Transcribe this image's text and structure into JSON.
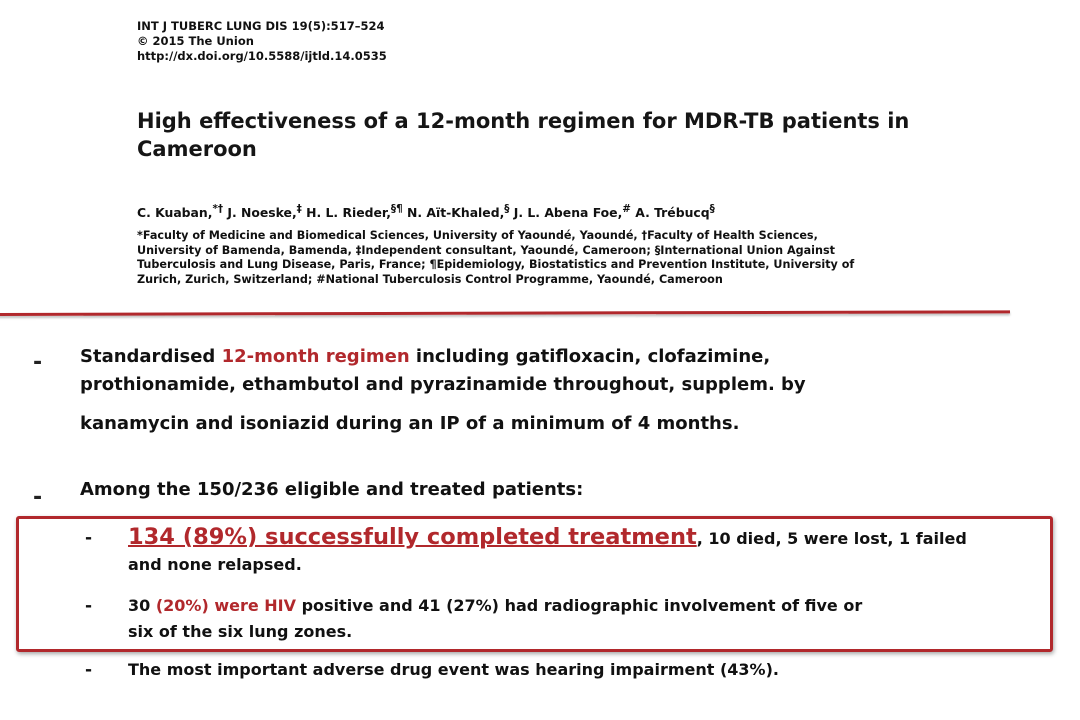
{
  "header": {
    "journal_line": "INT J TUBERC LUNG DIS 19(5):517–524",
    "copyright_line": "© 2015 The Union",
    "doi_line": "http://dx.doi.org/10.5588/ijtld.14.0535"
  },
  "paper": {
    "title_line1": "High effectiveness of a 12-month regimen for MDR-TB patients in",
    "title_line2": "Cameroon",
    "authors": {
      "a1": "C. Kuaban,",
      "a1_sup": "*†",
      "a2": " J. Noeske,",
      "a2_sup": "‡",
      "a3": " H. L. Rieder,",
      "a3_sup": "§¶",
      "a4": " N. Aït-Khaled,",
      "a4_sup": "§",
      "a5": " J. L. Abena Foe,",
      "a5_sup": "#",
      "a6": " A. Trébucq",
      "a6_sup": "§"
    },
    "affiliations": {
      "line1": "*Faculty of Medicine and Biomedical Sciences, University of Yaoundé, Yaoundé, †Faculty of Health Sciences,",
      "line2": "University of Bamenda, Bamenda, ‡Independent consultant, Yaoundé, Cameroon; §International Union Against",
      "line3": "Tuberculosis and Lung Disease, Paris, France; ¶Epidemiology, Biostatistics and Prevention Institute, University of",
      "line4": "Zurich, Zurich, Switzerland; #National Tuberculosis Control Programme, Yaoundé, Cameroon"
    }
  },
  "bullets": {
    "marker": "-",
    "b1": {
      "pre": "Standardised ",
      "highlight": "12-month regimen",
      "post": " including gatifloxacin, clofazimine,",
      "line2": "prothionamide, ethambutol and pyrazinamide throughout, supplem. by",
      "line3": "kanamycin and isoniazid during an IP of a minimum of 4 months."
    },
    "b2": {
      "text": "Among the 150/236 eligible and treated patients:"
    }
  },
  "sub_bullets": {
    "dash": "-",
    "s1": {
      "highlight": "134 (89%) successfully completed treatment",
      "rest": ", 10 died, 5 were lost, 1 failed",
      "line2": "and none relapsed."
    },
    "s2": {
      "pre": "30 ",
      "highlight": "(20%) were HIV",
      "post": " positive and 41 (27%) had radiographic involvement of five or",
      "line2": "six of the six lung zones."
    },
    "s3": {
      "text": "The most important adverse drug event was hearing impairment (43%)."
    }
  },
  "colors": {
    "accent_red": "#b1282c",
    "text": "#111111"
  }
}
